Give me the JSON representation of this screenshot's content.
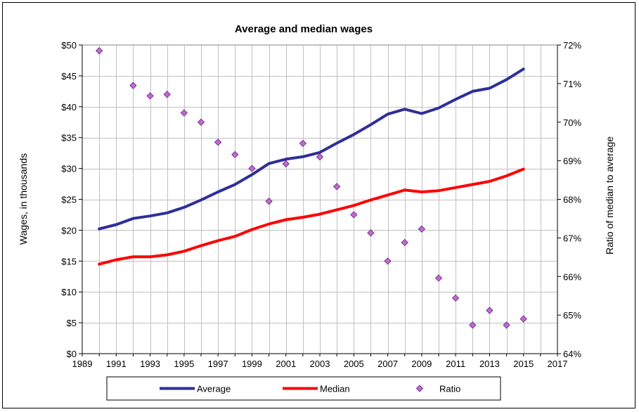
{
  "chart_data": {
    "type": "line",
    "title": "Average and median wages",
    "xlabel": "",
    "ylabel": "Wages, in thousands",
    "y2label": "Ratio of median to average",
    "xlim": [
      1989,
      2017
    ],
    "ylim": [
      0,
      50
    ],
    "y2lim": [
      64,
      72
    ],
    "x_ticks": [
      1989,
      1991,
      1993,
      1995,
      1997,
      1999,
      2001,
      2003,
      2005,
      2007,
      2009,
      2011,
      2013,
      2015,
      2017
    ],
    "y_ticks": [
      "$0",
      "$5",
      "$10",
      "$15",
      "$20",
      "$25",
      "$30",
      "$35",
      "$40",
      "$45",
      "$50"
    ],
    "y2_ticks": [
      "64%",
      "65%",
      "66%",
      "67%",
      "68%",
      "69%",
      "70%",
      "71%",
      "72%"
    ],
    "x": [
      1990,
      1991,
      1992,
      1993,
      1994,
      1995,
      1996,
      1997,
      1998,
      1999,
      2000,
      2001,
      2002,
      2003,
      2004,
      2005,
      2006,
      2007,
      2008,
      2009,
      2010,
      2011,
      2012,
      2013,
      2014,
      2015
    ],
    "series": [
      {
        "name": "Average",
        "axis": "left",
        "color": "#2e2e9a",
        "values": [
          20.2,
          20.9,
          21.9,
          22.3,
          22.8,
          23.7,
          24.9,
          26.2,
          27.4,
          29.0,
          30.8,
          31.5,
          31.9,
          32.6,
          34.1,
          35.5,
          37.1,
          38.8,
          39.6,
          38.9,
          39.8,
          41.2,
          42.5,
          43.0,
          44.4,
          46.1
        ]
      },
      {
        "name": "Median",
        "axis": "left",
        "color": "#ff0000",
        "values": [
          14.5,
          15.2,
          15.7,
          15.7,
          16.0,
          16.6,
          17.5,
          18.3,
          19.0,
          20.1,
          21.0,
          21.7,
          22.1,
          22.6,
          23.3,
          24.0,
          24.9,
          25.7,
          26.5,
          26.2,
          26.4,
          26.9,
          27.4,
          27.9,
          28.8,
          29.9
        ]
      },
      {
        "name": "Ratio",
        "axis": "right",
        "color": "#cc66cc",
        "marker": "diamond",
        "values": [
          71.85,
          null,
          70.95,
          70.68,
          70.72,
          70.24,
          70.0,
          69.48,
          69.16,
          68.8,
          67.95,
          68.92,
          69.45,
          69.1,
          68.33,
          67.6,
          67.13,
          66.4,
          66.88,
          67.23,
          65.96,
          65.44,
          64.74,
          65.12,
          64.74,
          64.9
        ]
      }
    ],
    "legend": {
      "position": "bottom",
      "entries": [
        "Average",
        "Median",
        "Ratio"
      ]
    },
    "grid": true
  }
}
